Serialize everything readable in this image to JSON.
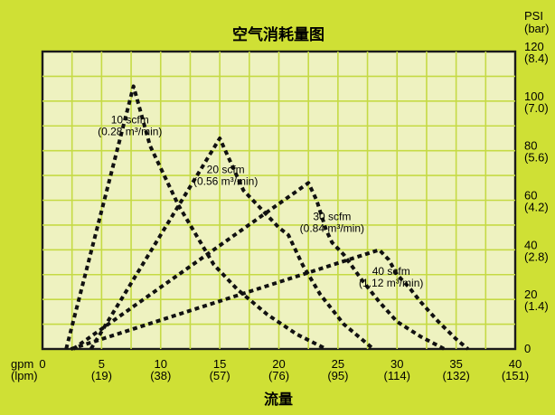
{
  "chart_data": {
    "type": "line",
    "title": "空气消耗量图",
    "xlabel": "流量",
    "ylabel": "PSI",
    "ylabel_unit": "(bar)",
    "x_unit_primary": "gpm",
    "x_unit_secondary": "(lpm)",
    "xlim": [
      0,
      40
    ],
    "ylim": [
      0,
      120
    ],
    "grid": true,
    "x_ticks": [
      {
        "value": 0,
        "label": "0",
        "sub": ""
      },
      {
        "value": 5,
        "label": "5",
        "sub": "(19)"
      },
      {
        "value": 10,
        "label": "10",
        "sub": "(38)"
      },
      {
        "value": 15,
        "label": "15",
        "sub": "(57)"
      },
      {
        "value": 20,
        "label": "20",
        "sub": "(76)"
      },
      {
        "value": 25,
        "label": "25",
        "sub": "(95)"
      },
      {
        "value": 30,
        "label": "30",
        "sub": "(114)"
      },
      {
        "value": 35,
        "label": "35",
        "sub": "(132)"
      },
      {
        "value": 40,
        "label": "40",
        "sub": "(151)"
      }
    ],
    "y_ticks": [
      {
        "value": 0,
        "label": "0",
        "sub": ""
      },
      {
        "value": 20,
        "label": "20",
        "sub": "(1.4)"
      },
      {
        "value": 40,
        "label": "40",
        "sub": "(2.8)"
      },
      {
        "value": 60,
        "label": "60",
        "sub": "(4.2)"
      },
      {
        "value": 80,
        "label": "80",
        "sub": "(5.6)"
      },
      {
        "value": 100,
        "label": "100",
        "sub": "(7.0)"
      },
      {
        "value": 120,
        "label": "120",
        "sub": "(8.4)"
      }
    ],
    "series": [
      {
        "name": "10 scfm",
        "sub": "(0.28 m³/min)",
        "x": [
          7.7,
          9.1,
          10.0,
          11.5,
          13.0,
          14.5,
          16.5,
          19.0,
          21.5,
          24.0
        ],
        "y": [
          106,
          82,
          73,
          58,
          46,
          34,
          24,
          14,
          6,
          0
        ],
        "gap": [
          1.2,
          2.0
        ],
        "label_at": [
          7.4,
          91
        ]
      },
      {
        "name": "20 scfm",
        "sub": "(0.56 m³/min)",
        "x": [
          15.0,
          17.0,
          19.0,
          20.0,
          20.8,
          22.0,
          23.5,
          25.5,
          28.0
        ],
        "y": [
          85,
          64,
          54,
          49,
          46,
          34,
          22,
          10,
          0
        ],
        "gap": [
          3.1,
          4.1
        ],
        "label_at": [
          15.5,
          71
        ]
      },
      {
        "name": "30 scfm",
        "sub": "(0.84 m³/min)",
        "x": [
          22.5,
          23.2,
          24.0,
          24.5,
          25.5,
          27.0,
          28.5,
          30.0,
          32.0,
          34.0
        ],
        "y": [
          67,
          60,
          48,
          43,
          38,
          28,
          19,
          11,
          5,
          0
        ],
        "gap": [
          1.8,
          2.6
        ],
        "label_at": [
          24.5,
          52
        ]
      },
      {
        "name": "40 scfm",
        "sub": "(1.12 m³/min)",
        "x": [
          28.5,
          29.3,
          30.0,
          31.0,
          32.0,
          33.5,
          35.0,
          36.0
        ],
        "y": [
          40,
          36,
          30,
          25,
          19,
          11,
          4,
          0
        ],
        "gap": [
          1.5,
          2.4
        ],
        "label_at": [
          29.5,
          30
        ]
      }
    ]
  }
}
